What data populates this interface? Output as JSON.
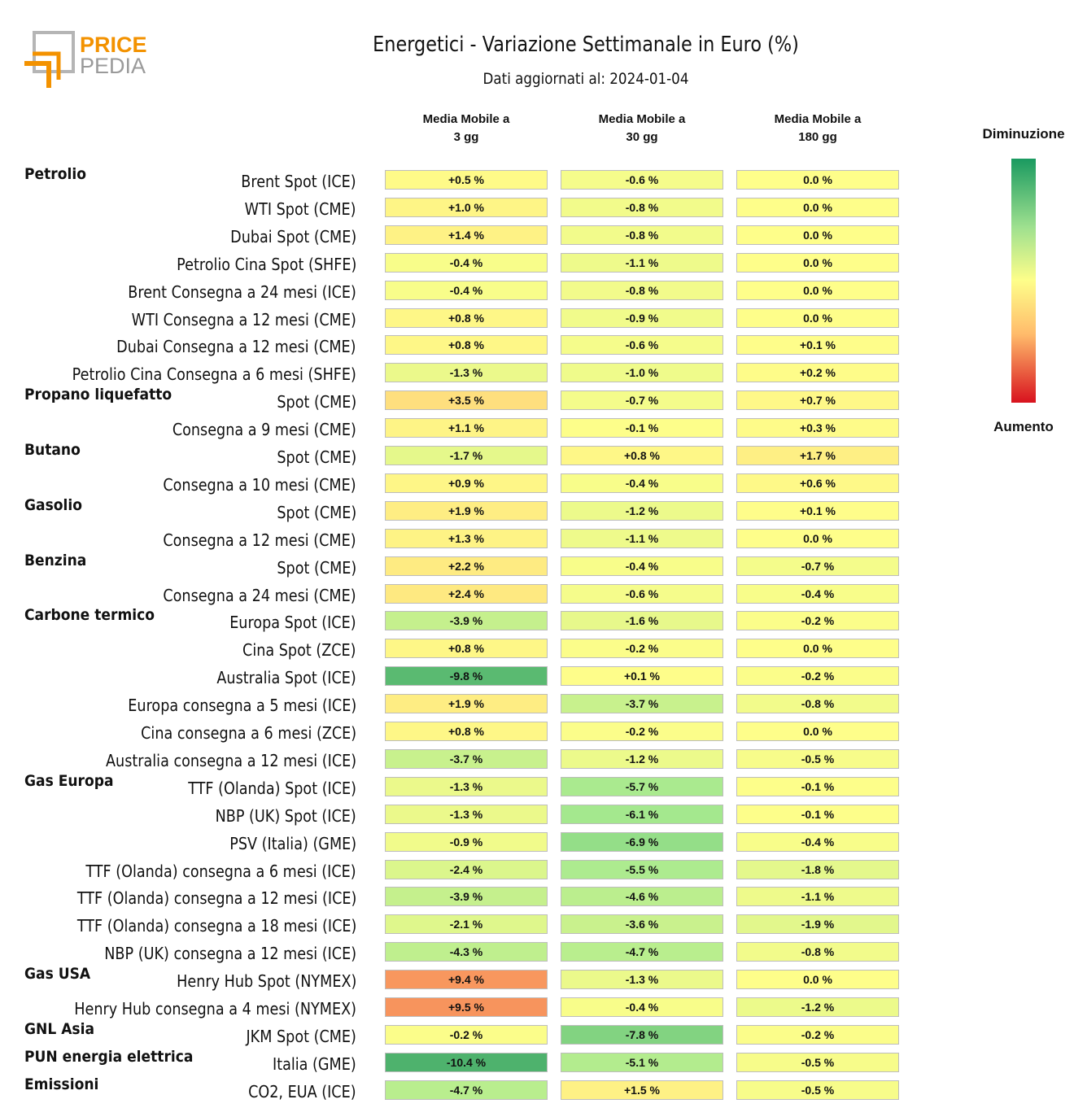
{
  "logo": {
    "text_top": "PRICE",
    "text_bottom": "PEDIA",
    "accent_color": "#f39200"
  },
  "header": {
    "title": "Energetici - Variazione Settimanale in Euro (%)",
    "subtitle": "Dati aggiornati al: 2024-01-04"
  },
  "columns": [
    {
      "line1": "Media Mobile a",
      "line2": "3 gg"
    },
    {
      "line1": "Media Mobile a",
      "line2": "30 gg"
    },
    {
      "line1": "Media Mobile a",
      "line2": "180 gg"
    }
  ],
  "legend": {
    "top": "Diminuzione",
    "bottom": "Aumento"
  },
  "chart_data": {
    "type": "heatmap",
    "title": "Energetici - Variazione Settimanale in Euro (%)",
    "unit": "%",
    "columns": [
      "Media Mobile a 3 gg",
      "Media Mobile a 30 gg",
      "Media Mobile a 180 gg"
    ],
    "rows": [
      {
        "category": "Petrolio",
        "label": "Brent Spot (ICE)",
        "values": [
          0.5,
          -0.6,
          0.0
        ]
      },
      {
        "category": "",
        "label": "WTI Spot (CME)",
        "values": [
          1.0,
          -0.8,
          0.0
        ]
      },
      {
        "category": "",
        "label": "Dubai Spot (CME)",
        "values": [
          1.4,
          -0.8,
          0.0
        ]
      },
      {
        "category": "",
        "label": "Petrolio Cina Spot (SHFE)",
        "values": [
          -0.4,
          -1.1,
          0.0
        ]
      },
      {
        "category": "",
        "label": "Brent Consegna a 24 mesi (ICE)",
        "values": [
          -0.4,
          -0.8,
          0.0
        ]
      },
      {
        "category": "",
        "label": "WTI Consegna a 12 mesi (CME)",
        "values": [
          0.8,
          -0.9,
          0.0
        ]
      },
      {
        "category": "",
        "label": "Dubai Consegna a 12 mesi (CME)",
        "values": [
          0.8,
          -0.6,
          0.1
        ]
      },
      {
        "category": "",
        "label": "Petrolio Cina Consegna a 6 mesi (SHFE)",
        "values": [
          -1.3,
          -1.0,
          0.2
        ]
      },
      {
        "category": "Propano liquefatto",
        "label": "Spot (CME)",
        "values": [
          3.5,
          -0.7,
          0.7
        ]
      },
      {
        "category": "",
        "label": "Consegna a 9 mesi (CME)",
        "values": [
          1.1,
          -0.1,
          0.3
        ]
      },
      {
        "category": "Butano",
        "label": "Spot (CME)",
        "values": [
          -1.7,
          0.8,
          1.7
        ]
      },
      {
        "category": "",
        "label": "Consegna a 10 mesi (CME)",
        "values": [
          0.9,
          -0.4,
          0.6
        ]
      },
      {
        "category": "Gasolio",
        "label": "Spot (CME)",
        "values": [
          1.9,
          -1.2,
          0.1
        ]
      },
      {
        "category": "",
        "label": "Consegna a 12 mesi (CME)",
        "values": [
          1.3,
          -1.1,
          0.0
        ]
      },
      {
        "category": "Benzina",
        "label": "Spot (CME)",
        "values": [
          2.2,
          -0.4,
          -0.7
        ]
      },
      {
        "category": "",
        "label": "Consegna a 24 mesi (CME)",
        "values": [
          2.4,
          -0.6,
          -0.4
        ]
      },
      {
        "category": "Carbone termico",
        "label": "Europa Spot (ICE)",
        "values": [
          -3.9,
          -1.6,
          -0.2
        ]
      },
      {
        "category": "",
        "label": "Cina Spot (ZCE)",
        "values": [
          0.8,
          -0.2,
          0.0
        ]
      },
      {
        "category": "",
        "label": "Australia Spot (ICE)",
        "values": [
          -9.8,
          0.1,
          -0.2
        ]
      },
      {
        "category": "",
        "label": "Europa consegna a 5 mesi (ICE)",
        "values": [
          1.9,
          -3.7,
          -0.8
        ]
      },
      {
        "category": "",
        "label": "Cina consegna a 6 mesi (ZCE)",
        "values": [
          0.8,
          -0.2,
          0.0
        ]
      },
      {
        "category": "",
        "label": "Australia consegna a 12 mesi (ICE)",
        "values": [
          -3.7,
          -1.2,
          -0.5
        ]
      },
      {
        "category": "Gas Europa",
        "label": "TTF (Olanda) Spot (ICE)",
        "values": [
          -1.3,
          -5.7,
          -0.1
        ]
      },
      {
        "category": "",
        "label": "NBP (UK) Spot (ICE)",
        "values": [
          -1.3,
          -6.1,
          -0.1
        ]
      },
      {
        "category": "",
        "label": "PSV (Italia) (GME)",
        "values": [
          -0.9,
          -6.9,
          -0.4
        ]
      },
      {
        "category": "",
        "label": "TTF (Olanda) consegna a 6 mesi (ICE)",
        "values": [
          -2.4,
          -5.5,
          -1.8
        ]
      },
      {
        "category": "",
        "label": "TTF (Olanda) consegna a 12 mesi (ICE)",
        "values": [
          -3.9,
          -4.6,
          -1.1
        ]
      },
      {
        "category": "",
        "label": "TTF (Olanda) consegna a 18 mesi (ICE)",
        "values": [
          -2.1,
          -3.6,
          -1.9
        ]
      },
      {
        "category": "",
        "label": "NBP (UK) consegna a 12 mesi (ICE)",
        "values": [
          -4.3,
          -4.7,
          -0.8
        ]
      },
      {
        "category": "Gas USA",
        "label": "Henry Hub Spot (NYMEX)",
        "values": [
          9.4,
          -1.3,
          0.0
        ]
      },
      {
        "category": "",
        "label": "Henry Hub consegna a 4 mesi (NYMEX)",
        "values": [
          9.5,
          -0.4,
          -1.2
        ]
      },
      {
        "category": "GNL Asia",
        "label": "JKM Spot (CME)",
        "values": [
          -0.2,
          -7.8,
          -0.2
        ]
      },
      {
        "category": "PUN energia elettrica",
        "label": "Italia (GME)",
        "values": [
          -10.4,
          -5.1,
          -0.5
        ]
      },
      {
        "category": "Emissioni",
        "label": "CO2, EUA (ICE)",
        "values": [
          -4.7,
          1.5,
          -0.5
        ]
      }
    ],
    "color_scale": {
      "decrease": "#1a9a60",
      "neutral": "#fefe8a",
      "increase": "#d8121e"
    }
  }
}
